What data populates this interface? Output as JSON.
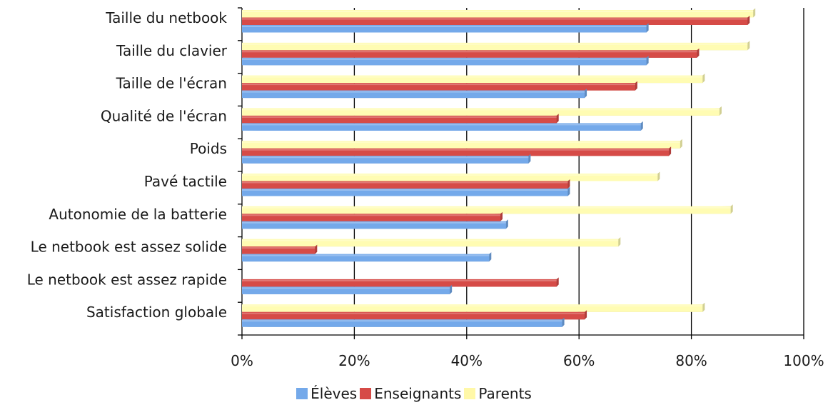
{
  "chart_data": {
    "type": "bar",
    "orientation": "horizontal",
    "categories": [
      "Taille du netbook",
      "Taille du clavier",
      "Taille de l'écran",
      "Qualité de l'écran",
      "Poids",
      "Pavé tactile",
      "Autonomie de la batterie",
      "Le netbook est assez solide",
      "Le netbook est assez rapide",
      "Satisfaction globale"
    ],
    "series": [
      {
        "name": "Parents",
        "color": "#FFFCB3",
        "values": [
          91,
          90,
          82,
          85,
          78,
          74,
          87,
          67,
          0,
          82
        ]
      },
      {
        "name": "Enseignants",
        "color": "#D64B47",
        "values": [
          90,
          81,
          70,
          56,
          76,
          58,
          46,
          13,
          56,
          61
        ]
      },
      {
        "name": "Élèves",
        "color": "#74A9EA",
        "values": [
          72,
          72,
          61,
          71,
          51,
          58,
          47,
          44,
          37,
          57
        ]
      }
    ],
    "x_ticks": [
      "0%",
      "20%",
      "40%",
      "60%",
      "80%",
      "100%"
    ],
    "xlim": [
      0,
      100
    ],
    "grid": "vertical",
    "legend_position": "bottom",
    "legend": [
      "Élèves",
      "Enseignants",
      "Parents"
    ],
    "title": "",
    "xlabel": "",
    "ylabel": ""
  }
}
